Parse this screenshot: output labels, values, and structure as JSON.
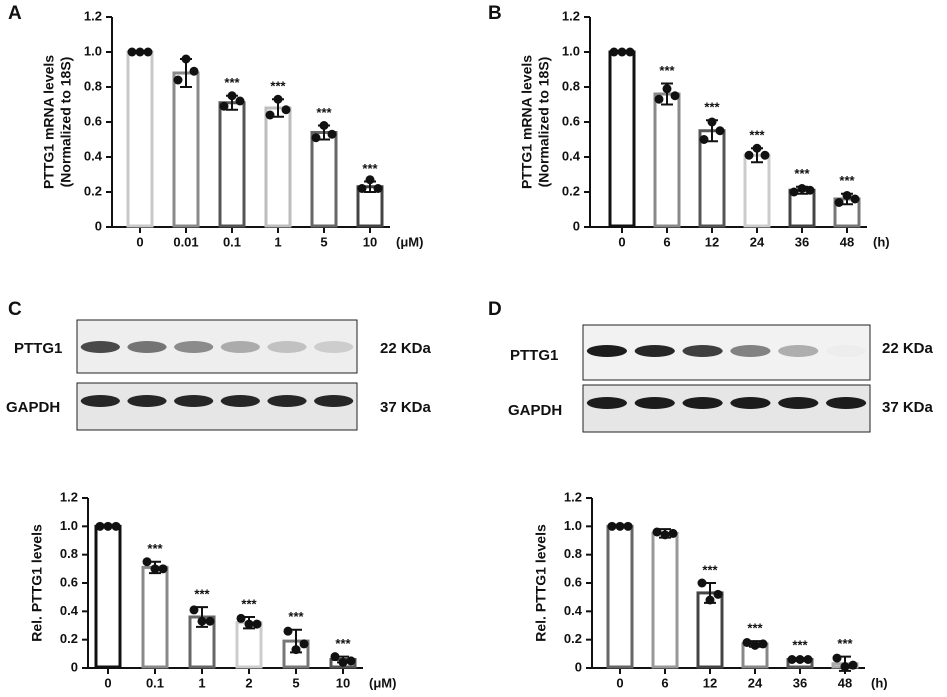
{
  "panels": [
    "A",
    "B",
    "C",
    "D"
  ],
  "blots": [
    {
      "rows": [
        {
          "label": "PTTG1",
          "size": "22 KDa"
        },
        {
          "label": "GAPDH",
          "size": "37 KDa"
        }
      ]
    },
    {
      "rows": [
        {
          "label": "PTTG1",
          "size": "22 KDa"
        },
        {
          "label": "GAPDH",
          "size": "37 KDa"
        }
      ]
    }
  ],
  "chart_data": [
    {
      "type": "bar",
      "ylabel": [
        "PTTG1 mRNA levels",
        "(Normalized to 18S)"
      ],
      "xunit": "(μM)",
      "categories": [
        "0",
        "0.01",
        "0.1",
        "1",
        "5",
        "10"
      ],
      "values": [
        1.0,
        0.88,
        0.71,
        0.68,
        0.54,
        0.23
      ],
      "errors": [
        0.0,
        0.08,
        0.04,
        0.05,
        0.04,
        0.03
      ],
      "points": [
        [
          1.0,
          1.0,
          1.0
        ],
        [
          0.84,
          0.96,
          0.89
        ],
        [
          0.69,
          0.75,
          0.72
        ],
        [
          0.64,
          0.73,
          0.67
        ],
        [
          0.51,
          0.58,
          0.53
        ],
        [
          0.22,
          0.27,
          0.22
        ]
      ],
      "significance": [
        null,
        null,
        "***",
        "***",
        "***",
        "***"
      ],
      "colors": [
        "#c8c8c8",
        "#8a8a8a",
        "#555555",
        "#bdbdbd",
        "#666666",
        "#444444"
      ],
      "ylim": [
        0,
        1.2
      ],
      "yticks": [
        0,
        0.2,
        0.4,
        0.6,
        0.8,
        {
          "value": 1.0,
          "label": "1.0"
        },
        1.2
      ]
    },
    {
      "type": "bar",
      "ylabel": [
        "PTTG1 mRNA levels",
        "(Normalized to 18S)"
      ],
      "xunit": "(h)",
      "categories": [
        "0",
        "6",
        "12",
        "24",
        "36",
        "48"
      ],
      "values": [
        1.0,
        0.76,
        0.55,
        0.41,
        0.21,
        0.16
      ],
      "errors": [
        0.0,
        0.06,
        0.06,
        0.04,
        0.02,
        0.03
      ],
      "points": [
        [
          1.0,
          1.0,
          1.0
        ],
        [
          0.73,
          0.79,
          0.75
        ],
        [
          0.5,
          0.6,
          0.55
        ],
        [
          0.41,
          0.45,
          0.41
        ],
        [
          0.2,
          0.22,
          0.21
        ],
        [
          0.14,
          0.18,
          0.16
        ]
      ],
      "significance": [
        null,
        "***",
        "***",
        "***",
        "***",
        "***"
      ],
      "colors": [
        "#111111",
        "#8a8a8a",
        "#555555",
        "#cccccc",
        "#444444",
        "#777777"
      ],
      "ylim": [
        0,
        1.2
      ],
      "yticks": [
        0,
        0.2,
        0.4,
        0.6,
        0.8,
        {
          "value": 1.0,
          "label": "1.0"
        },
        1.2
      ]
    },
    {
      "type": "bar",
      "ylabel": [
        "Rel. PTTG1 levels"
      ],
      "xunit": "(μM)",
      "categories": [
        "0",
        "0.1",
        "1",
        "2",
        "5",
        "10"
      ],
      "values": [
        1.0,
        0.71,
        0.36,
        0.32,
        0.19,
        0.06
      ],
      "errors": [
        0.0,
        0.04,
        0.07,
        0.04,
        0.08,
        0.02
      ],
      "points": [
        [
          1.0,
          1.0,
          1.0
        ],
        [
          0.75,
          0.7,
          0.7
        ],
        [
          0.41,
          0.33,
          0.33
        ],
        [
          0.35,
          0.31,
          0.31
        ],
        [
          0.26,
          0.13,
          0.17
        ],
        [
          0.08,
          0.04,
          0.05
        ]
      ],
      "significance": [
        null,
        "***",
        "***",
        "***",
        "***",
        "***"
      ],
      "colors": [
        "#111111",
        "#8a8a8a",
        "#666666",
        "#cccccc",
        "#777777",
        "#555555"
      ],
      "ylim": [
        0,
        1.2
      ],
      "yticks": [
        0,
        0.2,
        0.4,
        0.6,
        0.8,
        {
          "value": 1.0,
          "label": "1.0"
        },
        1.2
      ]
    },
    {
      "type": "bar",
      "ylabel": [
        "Rel. PTTG1 levels"
      ],
      "xunit": "(h)",
      "categories": [
        "0",
        "6",
        "12",
        "24",
        "36",
        "48"
      ],
      "values": [
        1.0,
        0.95,
        0.53,
        0.17,
        0.06,
        0.03
      ],
      "errors": [
        0.0,
        0.03,
        0.07,
        0.02,
        0.01,
        0.05
      ],
      "points": [
        [
          1.0,
          1.0,
          1.0
        ],
        [
          0.96,
          0.94,
          0.95
        ],
        [
          0.6,
          0.48,
          0.52
        ],
        [
          0.18,
          0.16,
          0.17
        ],
        [
          0.06,
          0.06,
          0.06
        ],
        [
          0.07,
          0.01,
          0.02
        ]
      ],
      "significance": [
        null,
        null,
        "***",
        "***",
        "***",
        "***"
      ],
      "colors": [
        "#666666",
        "#999999",
        "#444444",
        "#888888",
        "#555555",
        "#aaaaaa"
      ],
      "ylim": [
        0,
        1.2
      ],
      "yticks": [
        0,
        0.2,
        0.4,
        0.6,
        0.8,
        {
          "value": 1.0,
          "label": "1.0"
        },
        1.2
      ]
    }
  ]
}
